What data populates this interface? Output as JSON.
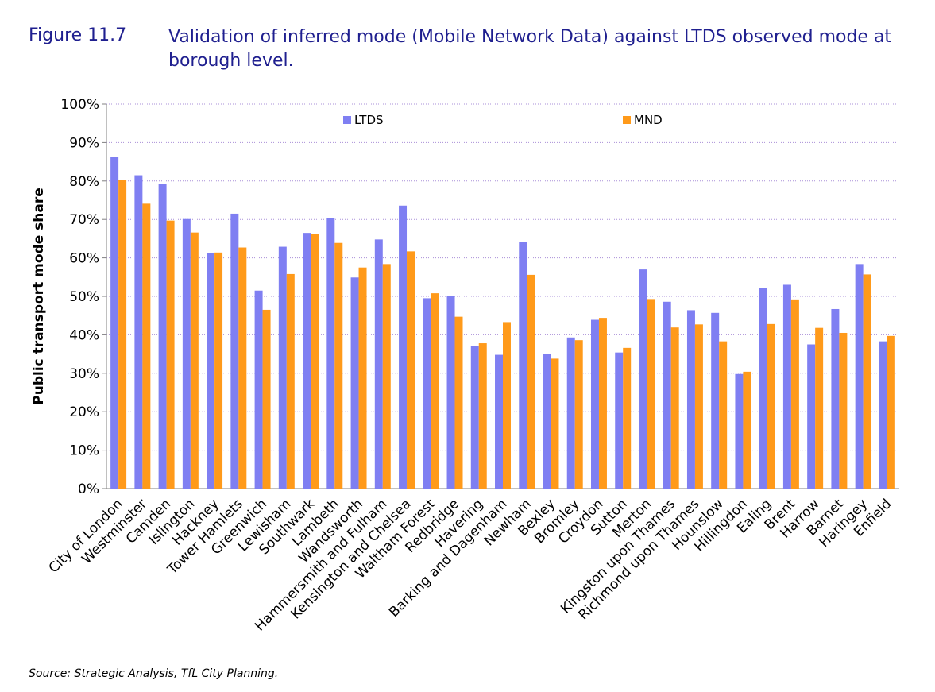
{
  "figure": {
    "label": "Figure 11.7",
    "title": "Validation of inferred mode (Mobile Network Data) against LTDS observed mode at borough level.",
    "source": "Source: Strategic Analysis, TfL City Planning."
  },
  "colors": {
    "LTDS": "#7f7ff2",
    "MND": "#ff9a1a",
    "grid": "#a98fd8",
    "axis": "#808080"
  },
  "chart_data": {
    "type": "bar",
    "ylabel": "Public transport mode share",
    "xlabel": "",
    "ylim": [
      0,
      100
    ],
    "yticks": [
      "0%",
      "10%",
      "20%",
      "30%",
      "40%",
      "50%",
      "60%",
      "70%",
      "80%",
      "90%",
      "100%"
    ],
    "grid": true,
    "legend_position": "top",
    "categories": [
      "City of London",
      "Westminster",
      "Camden",
      "Islington",
      "Hackney",
      "Tower Hamlets",
      "Greenwich",
      "Lewisham",
      "Southwark",
      "Lambeth",
      "Wandsworth",
      "Hammersmith and Fulham",
      "Kensington and Chelsea",
      "Waltham Forest",
      "Redbridge",
      "Havering",
      "Barking and Dagenham",
      "Newham",
      "Bexley",
      "Bromley",
      "Croydon",
      "Sutton",
      "Merton",
      "Kingston upon Thames",
      "Richmond upon Thames",
      "Hounslow",
      "Hillingdon",
      "Ealing",
      "Brent",
      "Harrow",
      "Barnet",
      "Haringey",
      "Enfield"
    ],
    "series": [
      {
        "name": "LTDS",
        "values": [
          86.2,
          81.5,
          79.2,
          70.1,
          61.2,
          71.5,
          51.5,
          62.9,
          66.5,
          70.3,
          54.9,
          64.8,
          73.6,
          49.5,
          50.0,
          37.0,
          34.8,
          64.2,
          35.1,
          39.3,
          43.9,
          35.4,
          57.0,
          48.6,
          46.4,
          45.7,
          29.8,
          52.2,
          53.0,
          37.5,
          46.7,
          58.4,
          38.3
        ]
      },
      {
        "name": "MND",
        "values": [
          80.3,
          74.1,
          69.7,
          66.6,
          61.4,
          62.7,
          46.5,
          55.8,
          66.2,
          63.9,
          57.5,
          58.4,
          61.7,
          50.8,
          44.7,
          37.8,
          43.3,
          55.6,
          33.8,
          38.6,
          44.4,
          36.6,
          49.3,
          41.9,
          42.7,
          38.3,
          30.4,
          42.8,
          49.2,
          41.8,
          40.5,
          55.7,
          39.7
        ]
      }
    ]
  }
}
